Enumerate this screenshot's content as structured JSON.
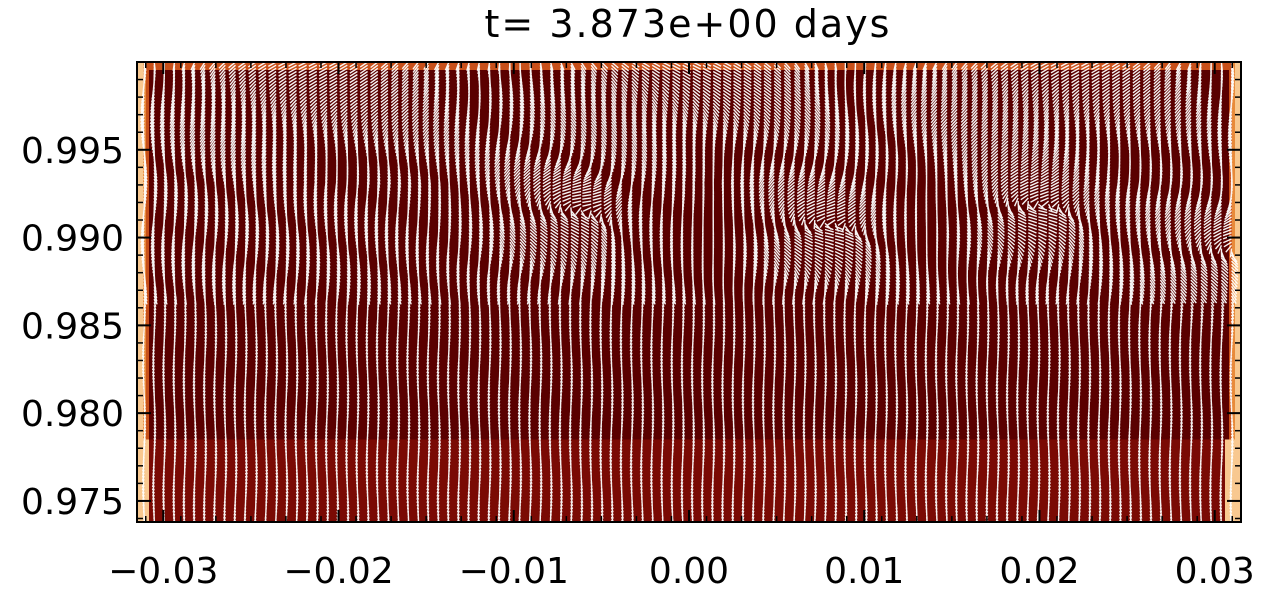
{
  "chart_data": {
    "type": "heatmap",
    "title": "t= 3.873e+00 days",
    "xlabel": "",
    "ylabel": "",
    "xlim": [
      -0.0315,
      0.0315
    ],
    "ylim": [
      0.9738,
      1.0
    ],
    "x_ticks": [
      -0.03,
      -0.02,
      -0.01,
      0.0,
      0.01,
      0.02,
      0.03
    ],
    "x_tick_labels": [
      "−0.03",
      "−0.02",
      "−0.01",
      "0.00",
      "0.01",
      "0.02",
      "0.03"
    ],
    "y_ticks": [
      0.975,
      0.98,
      0.985,
      0.99,
      0.995
    ],
    "y_tick_labels": [
      "0.975",
      "0.980",
      "0.985",
      "0.990",
      "0.995"
    ],
    "colormap": [
      "#5a0000",
      "#7a0a04",
      "#9a2208",
      "#c8501a",
      "#e88a3a",
      "#f8c890",
      "#fff0dc"
    ],
    "overlay": "velocity vectors (white arrows)",
    "vortex_centers": [
      {
        "x": -0.0085,
        "y": 0.992
      },
      {
        "x": 0.0055,
        "y": 0.9908
      },
      {
        "x": 0.0175,
        "y": 0.9918
      },
      {
        "x": 0.029,
        "y": 0.9898
      }
    ],
    "grid": false
  }
}
